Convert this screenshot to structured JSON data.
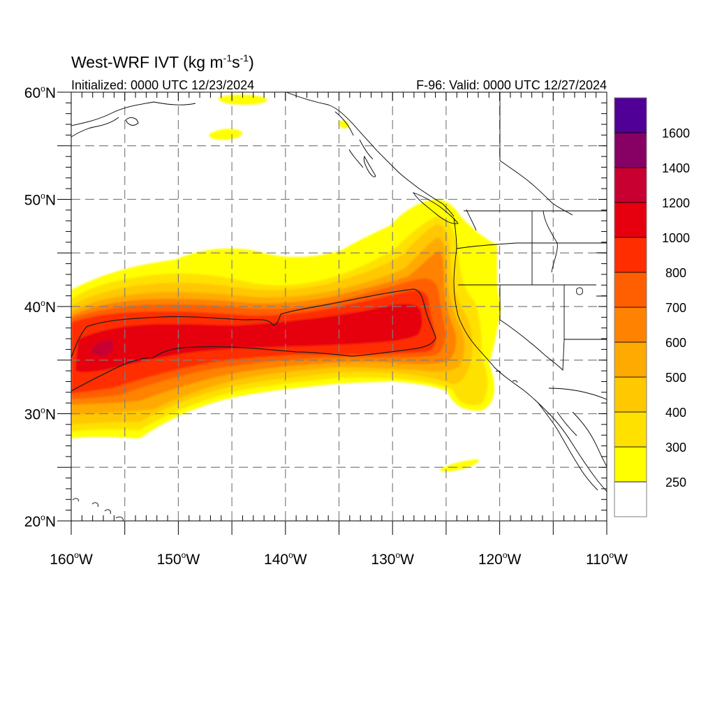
{
  "title": {
    "main": "West-WRF IVT (kg m",
    "sup1": "-1",
    "mid": "s",
    "sup2": "-1",
    "close": ")"
  },
  "subtitle_left": "Initialized: 0000 UTC 12/23/2024",
  "subtitle_right": "F-96: Valid: 0000 UTC 12/27/2024",
  "map": {
    "lon_range": [
      -160,
      -110
    ],
    "lat_range": [
      20,
      60
    ],
    "grid": "dashed every 5 degrees",
    "x_ticks": [
      {
        "lon": -160,
        "label": "160",
        "hemi": "W"
      },
      {
        "lon": -150,
        "label": "150",
        "hemi": "W"
      },
      {
        "lon": -140,
        "label": "140",
        "hemi": "W"
      },
      {
        "lon": -130,
        "label": "130",
        "hemi": "W"
      },
      {
        "lon": -120,
        "label": "120",
        "hemi": "W"
      },
      {
        "lon": -110,
        "label": "110",
        "hemi": "W"
      }
    ],
    "y_ticks": [
      {
        "lat": 60,
        "label": "60",
        "hemi": "N"
      },
      {
        "lat": 50,
        "label": "50",
        "hemi": "N"
      },
      {
        "lat": 40,
        "label": "40",
        "hemi": "N"
      },
      {
        "lat": 30,
        "label": "30",
        "hemi": "N"
      },
      {
        "lat": 20,
        "label": "20",
        "hemi": "N"
      }
    ],
    "degree_symbol": "o"
  },
  "colorbar": {
    "levels": [
      250,
      300,
      400,
      500,
      600,
      700,
      800,
      1000,
      1200,
      1400,
      1600
    ],
    "labels": [
      "250",
      "300",
      "400",
      "500",
      "600",
      "700",
      "800",
      "1000",
      "1200",
      "1400",
      "1600"
    ],
    "colors": [
      "#ffffff",
      "#ffff00",
      "#ffe100",
      "#ffc800",
      "#ffaa00",
      "#ff8200",
      "#ff5f00",
      "#ff2d00",
      "#e6000f",
      "#c80032",
      "#870064",
      "#500096"
    ]
  },
  "ivt_bands": [
    {
      "level": 250,
      "color": "#ffff00"
    },
    {
      "level": 300,
      "color": "#ffe100"
    },
    {
      "level": 400,
      "color": "#ffc800"
    },
    {
      "level": 500,
      "color": "#ffaa00"
    },
    {
      "level": 600,
      "color": "#ff8200"
    },
    {
      "level": 700,
      "color": "#ff5f00"
    },
    {
      "level": 800,
      "color": "#ff2d00"
    },
    {
      "level": 1000,
      "color": "#e6000f"
    },
    {
      "level": 1200,
      "color": "#c80032"
    }
  ],
  "contour_level": 800
}
